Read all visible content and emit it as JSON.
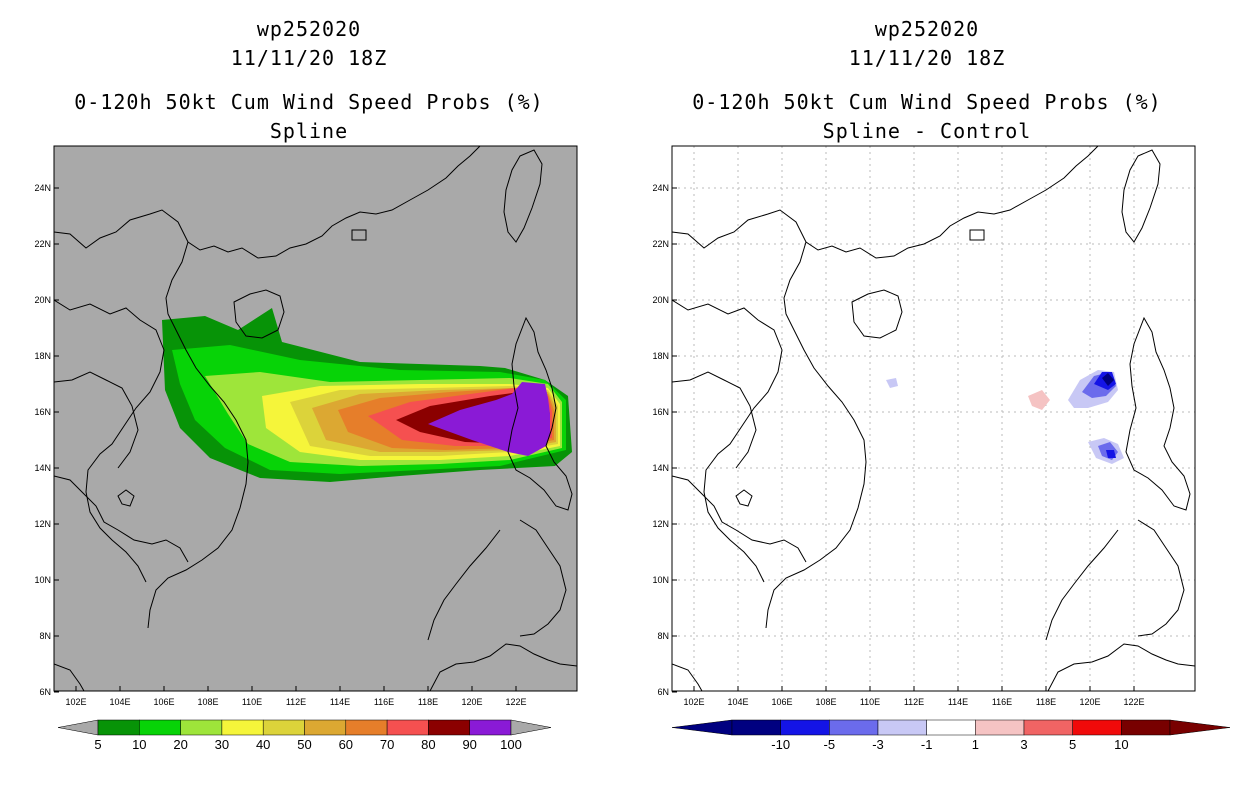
{
  "left_panel": {
    "storm_id": "wp252020",
    "datetime": "11/11/20 18Z",
    "product": "0-120h 50kt Cum Wind Speed Probs (%)",
    "method": "Spline",
    "background": "#a9a9a9",
    "legend": {
      "labels": [
        "5",
        "10",
        "20",
        "30",
        "40",
        "50",
        "60",
        "70",
        "80",
        "90",
        "100"
      ],
      "colors": [
        "#079307",
        "#07d307",
        "#9ee53a",
        "#f5f53a",
        "#dcd33a",
        "#dca832",
        "#e67e2a",
        "#f55050",
        "#8b0000",
        "#8a1ad6"
      ]
    }
  },
  "right_panel": {
    "storm_id": "wp252020",
    "datetime": "11/11/20 18Z",
    "product": "0-120h 50kt Cum Wind Speed Probs (%)",
    "method": "Spline - Control",
    "background": "#ffffff",
    "legend": {
      "labels": [
        "-10",
        "-5",
        "-3",
        "-1",
        "1",
        "3",
        "5",
        "10"
      ],
      "colors": [
        "#000080",
        "#1414e6",
        "#6b6bec",
        "#c8c8f5",
        "#ffffff",
        "#f5c3c3",
        "#f06464",
        "#f00a0a",
        "#780000"
      ]
    }
  },
  "map": {
    "lat_labels": [
      "24N",
      "22N",
      "20N",
      "18N",
      "16N",
      "14N",
      "12N",
      "10N",
      "8N",
      "6N"
    ],
    "lon_labels": [
      "102E",
      "104E",
      "106E",
      "108E",
      "110E",
      "112E",
      "114E",
      "116E",
      "118E",
      "120E",
      "122E"
    ]
  }
}
